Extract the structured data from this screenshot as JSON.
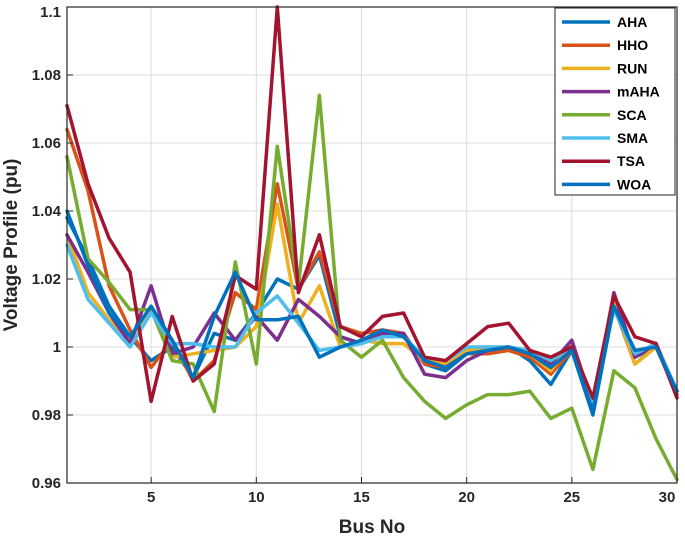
{
  "chart_data": {
    "type": "line",
    "title": "",
    "xlabel": "Bus No",
    "ylabel": "Voltage Profile (pu)",
    "xlim": [
      1,
      30
    ],
    "ylim": [
      0.96,
      1.1
    ],
    "xticks": [
      5,
      10,
      15,
      20,
      25,
      30
    ],
    "yticks": [
      0.96,
      0.98,
      1,
      1.02,
      1.04,
      1.06,
      1.08,
      1.1
    ],
    "ytick_labels": [
      "0.96",
      "0.98",
      "1",
      "1.02",
      "1.04",
      "1.06",
      "1.08",
      "1.1"
    ],
    "grid": true,
    "legend_position": "top-right",
    "x": [
      1,
      2,
      3,
      4,
      5,
      6,
      7,
      8,
      9,
      10,
      11,
      12,
      13,
      14,
      15,
      16,
      17,
      18,
      19,
      20,
      21,
      22,
      23,
      24,
      25,
      26,
      27,
      28,
      29,
      30
    ],
    "series": [
      {
        "name": "AHA",
        "color": "#0072BD",
        "values": [
          1.038,
          1.026,
          1.012,
          1.003,
          0.996,
          1.0,
          0.991,
          1.004,
          1.002,
          1.01,
          1.02,
          1.017,
          1.027,
          1.003,
          1.001,
          1.004,
          1.004,
          0.995,
          0.993,
          0.998,
          0.999,
          1.0,
          0.996,
          0.989,
          0.999,
          0.98,
          1.012,
          0.997,
          1.0,
          0.987
        ]
      },
      {
        "name": "HHO",
        "color": "#D95319",
        "values": [
          1.064,
          1.046,
          1.018,
          1.005,
          0.994,
          1.002,
          0.99,
          0.996,
          1.016,
          1.011,
          1.048,
          1.017,
          1.028,
          1.006,
          1.004,
          1.005,
          1.004,
          0.995,
          0.994,
          0.998,
          0.998,
          0.999,
          0.997,
          0.992,
          0.999,
          0.983,
          1.012,
          0.995,
          1.0,
          0.986
        ]
      },
      {
        "name": "RUN",
        "color": "#EDB120",
        "values": [
          1.033,
          1.016,
          1.008,
          1.002,
          1.012,
          0.997,
          0.998,
          0.999,
          1.0,
          1.006,
          1.042,
          1.007,
          1.018,
          1.0,
          1.002,
          1.001,
          1.001,
          0.996,
          0.995,
          0.999,
          1.0,
          1.0,
          0.998,
          0.993,
          1.001,
          0.983,
          1.013,
          0.995,
          1.0,
          0.987
        ]
      },
      {
        "name": "mAHA",
        "color": "#7E2F8E",
        "values": [
          1.033,
          1.022,
          1.01,
          1.001,
          1.018,
          0.998,
          1.0,
          1.01,
          1.002,
          1.009,
          1.002,
          1.014,
          1.009,
          1.003,
          1.001,
          1.004,
          1.004,
          0.992,
          0.991,
          0.996,
          0.999,
          1.0,
          0.998,
          0.995,
          1.002,
          0.983,
          1.016,
          0.997,
          1.001,
          0.987
        ]
      },
      {
        "name": "SCA",
        "color": "#77AC30",
        "values": [
          1.056,
          1.026,
          1.019,
          1.011,
          1.011,
          0.996,
          0.995,
          0.981,
          1.025,
          0.995,
          1.059,
          1.018,
          1.074,
          1.002,
          0.997,
          1.002,
          0.991,
          0.984,
          0.979,
          0.983,
          0.986,
          0.986,
          0.987,
          0.979,
          0.982,
          0.964,
          0.993,
          0.988,
          0.973,
          0.961
        ]
      },
      {
        "name": "SMA",
        "color": "#4DBEEE",
        "values": [
          1.03,
          1.014,
          1.007,
          1.0,
          1.01,
          1.001,
          1.001,
          1.0,
          1.0,
          1.01,
          1.015,
          1.007,
          0.999,
          1.0,
          1.001,
          1.003,
          1.003,
          0.997,
          0.996,
          1.0,
          1.0,
          1.0,
          0.999,
          0.996,
          1.0,
          0.984,
          1.011,
          0.998,
          1.001,
          0.987
        ]
      },
      {
        "name": "TSA",
        "color": "#A2142F",
        "values": [
          1.071,
          1.048,
          1.032,
          1.022,
          0.984,
          1.009,
          0.99,
          0.995,
          1.021,
          1.017,
          1.1,
          1.016,
          1.033,
          1.006,
          1.003,
          1.009,
          1.01,
          0.997,
          0.996,
          1.001,
          1.006,
          1.007,
          0.999,
          0.997,
          1.0,
          0.985,
          1.015,
          1.003,
          1.001,
          0.985
        ]
      },
      {
        "name": "WOA",
        "color": "#0072BD",
        "values": [
          1.04,
          1.024,
          1.01,
          1.003,
          1.012,
          1.002,
          0.991,
          1.009,
          1.022,
          1.008,
          1.008,
          1.009,
          0.997,
          1.0,
          1.002,
          1.005,
          1.003,
          0.996,
          0.994,
          0.998,
          0.999,
          1.0,
          0.998,
          0.994,
          0.999,
          0.981,
          1.012,
          0.999,
          1.0,
          0.987
        ]
      }
    ]
  }
}
